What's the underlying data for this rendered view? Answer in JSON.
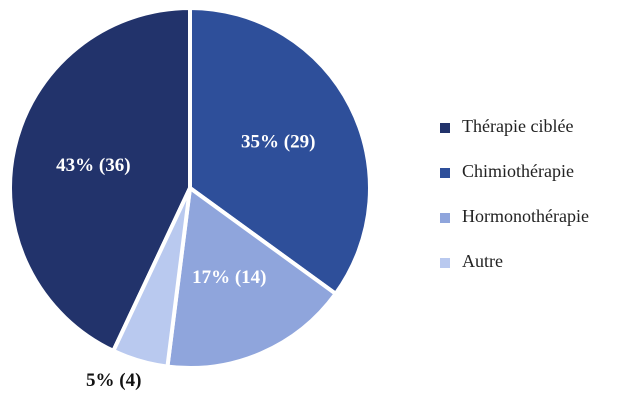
{
  "chart_data": {
    "type": "pie",
    "categories": [
      "Thérapie ciblée",
      "Chimiothérapie",
      "Hormonothérapie",
      "Autre"
    ],
    "values": [
      43,
      35,
      17,
      5
    ],
    "value_labels": [
      "43% (36)",
      "35% (29)",
      "17% (14)",
      "5% (4)"
    ],
    "colors": [
      "#22336b",
      "#2e4f9a",
      "#8fa5dc",
      "#b9c9ef"
    ],
    "legend": "right"
  }
}
